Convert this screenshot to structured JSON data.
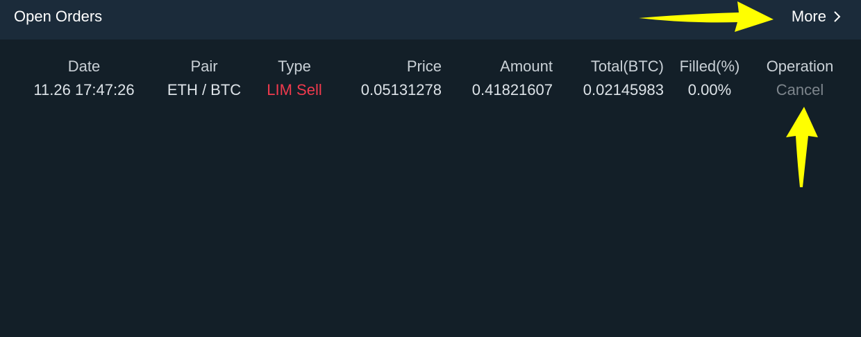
{
  "panel": {
    "title": "Open Orders",
    "more_label": "More"
  },
  "columns": {
    "date": "Date",
    "pair": "Pair",
    "type": "Type",
    "price": "Price",
    "amount": "Amount",
    "total": "Total(BTC)",
    "filled": "Filled(%)",
    "operation": "Operation"
  },
  "orders": [
    {
      "date": "11.26 17:47:26",
      "pair": "ETH / BTC",
      "type": "LIM Sell",
      "price": "0.05131278",
      "amount": "0.41821607",
      "total": "0.02145983",
      "filled": "0.00%",
      "operation": "Cancel"
    }
  ],
  "colors": {
    "background": "#131f28",
    "header_background": "#1b2b3a",
    "sell": "#f03a4d",
    "cancel": "#7d858c",
    "annotation_arrow": "#ffff00"
  },
  "icons": {
    "more": "chevron-right-icon",
    "annotations": [
      "arrow-annotation-icon",
      "arrow-annotation-icon"
    ]
  }
}
